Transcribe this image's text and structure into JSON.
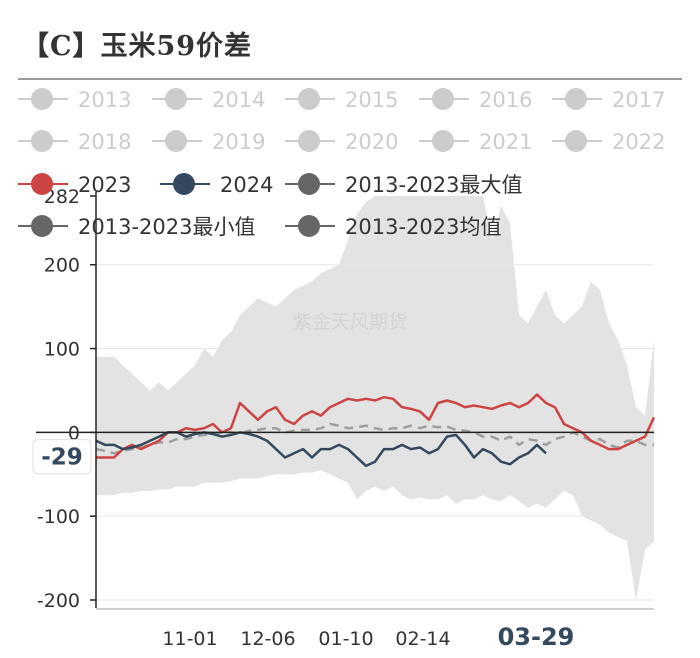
{
  "title": "【C】玉米59价差",
  "watermark": "紫金天风期货",
  "colors": {
    "c2023": "#cc4444",
    "c2024": "#34495e",
    "band": "#e3e3e3",
    "avg": "#9e9e9e",
    "legend_inactive": "#cccccc",
    "legend_gray": "#666666"
  },
  "chart_data": {
    "type": "line",
    "title": "【C】玉米59价差",
    "xlabel": "",
    "ylabel": "",
    "ylim": [
      -200,
      282
    ],
    "yticks": [
      "282",
      "200",
      "100",
      "0",
      "-100",
      "-200"
    ],
    "xticks": [
      "11-01",
      "12-06",
      "01-10",
      "02-14",
      "03-29"
    ],
    "highlight_x_label": "03-29",
    "cursor_y_label": "-29",
    "legend": {
      "placement": "top",
      "rows": [
        [
          {
            "label": "2013",
            "inactive": true
          },
          {
            "label": "2014",
            "inactive": true
          },
          {
            "label": "2015",
            "inactive": true
          },
          {
            "label": "2016",
            "inactive": true
          },
          {
            "label": "2017",
            "inactive": true
          }
        ],
        [
          {
            "label": "2018",
            "inactive": true
          },
          {
            "label": "2019",
            "inactive": true
          },
          {
            "label": "2020",
            "inactive": true
          },
          {
            "label": "2021",
            "inactive": true
          },
          {
            "label": "2022",
            "inactive": true
          }
        ],
        [
          {
            "label": "2023",
            "inactive": false,
            "color": "#cc4444"
          },
          {
            "label": "2024",
            "inactive": false,
            "color": "#34495e"
          },
          {
            "label": "2013-2023最大值",
            "inactive": false,
            "color": "#666666"
          }
        ],
        [
          {
            "label": "2013-2023最小值",
            "inactive": false,
            "color": "#666666"
          },
          {
            "label": "2013-2023均值",
            "inactive": false,
            "color": "#666666"
          }
        ]
      ]
    },
    "x_index": [
      0,
      9,
      18,
      27,
      36,
      45,
      54,
      63,
      72,
      81,
      90,
      99,
      108,
      117,
      126,
      135,
      144,
      153,
      162,
      171,
      180,
      189,
      198,
      207,
      216,
      225,
      234,
      243,
      252,
      261,
      270,
      279,
      288,
      297,
      306,
      315,
      324,
      333,
      342,
      351,
      360,
      369,
      378,
      387,
      396,
      405,
      414,
      423,
      432,
      441,
      450,
      459,
      468,
      477,
      486,
      495,
      504,
      513,
      522,
      531,
      540,
      549,
      558
    ],
    "x_tick_index": [
      94,
      172,
      250,
      327,
      440
    ],
    "series": [
      {
        "name": "2013-2023最大值",
        "values": [
          90,
          90,
          90,
          80,
          70,
          60,
          50,
          60,
          50,
          60,
          70,
          80,
          100,
          90,
          110,
          120,
          140,
          150,
          160,
          155,
          150,
          160,
          170,
          175,
          180,
          190,
          195,
          200,
          230,
          260,
          275,
          282,
          282,
          282,
          282,
          282,
          282,
          282,
          282,
          282,
          282,
          282,
          282,
          282,
          230,
          270,
          250,
          140,
          130,
          150,
          170,
          140,
          130,
          140,
          150,
          180,
          170,
          130,
          110,
          80,
          30,
          20,
          110
        ]
      },
      {
        "name": "2013-2023最小值",
        "values": [
          -75,
          -75,
          -75,
          -72,
          -72,
          -70,
          -70,
          -68,
          -68,
          -65,
          -65,
          -65,
          -60,
          -60,
          -60,
          -58,
          -55,
          -55,
          -55,
          -52,
          -50,
          -50,
          -50,
          -48,
          -48,
          -45,
          -50,
          -55,
          -60,
          -80,
          -70,
          -65,
          -70,
          -65,
          -75,
          -80,
          -78,
          -80,
          -80,
          -75,
          -85,
          -80,
          -80,
          -75,
          -80,
          -82,
          -75,
          -82,
          -90,
          -85,
          -90,
          -80,
          -70,
          -75,
          -100,
          -105,
          -110,
          -120,
          -125,
          -130,
          -200,
          -140,
          -130
        ]
      },
      {
        "name": "2013-2023均值",
        "values": [
          -20,
          -22,
          -25,
          -22,
          -20,
          -18,
          -15,
          -12,
          -12,
          -8,
          -8,
          -5,
          -3,
          -2,
          0,
          0,
          -2,
          2,
          3,
          5,
          5,
          0,
          2,
          3,
          3,
          5,
          10,
          8,
          5,
          6,
          8,
          5,
          3,
          5,
          5,
          8,
          5,
          8,
          6,
          7,
          3,
          2,
          0,
          -5,
          -5,
          -10,
          -5,
          -15,
          -8,
          -10,
          -15,
          -8,
          -5,
          0,
          -5,
          -10,
          -8,
          -15,
          -18,
          -10,
          -10,
          -15,
          -15
        ]
      },
      {
        "name": "2023",
        "values": [
          -30,
          -30,
          -30,
          -20,
          -15,
          -20,
          -15,
          -10,
          0,
          0,
          5,
          3,
          5,
          10,
          0,
          5,
          35,
          25,
          15,
          25,
          30,
          15,
          10,
          20,
          25,
          20,
          30,
          35,
          40,
          38,
          40,
          38,
          42,
          40,
          30,
          28,
          25,
          15,
          35,
          38,
          35,
          30,
          32,
          30,
          28,
          32,
          35,
          30,
          35,
          45,
          35,
          30,
          10,
          5,
          0,
          -10,
          -15,
          -20,
          -20,
          -15,
          -10,
          -5,
          18
        ]
      },
      {
        "name": "2024",
        "values": [
          -10,
          -15,
          -15,
          -20,
          -18,
          -15,
          -10,
          -5,
          0,
          0,
          -5,
          -2,
          0,
          -2,
          -5,
          -3,
          0,
          -2,
          -5,
          -10,
          -20,
          -30,
          -25,
          -20,
          -30,
          -20,
          -20,
          -15,
          -20,
          -30,
          -40,
          -35,
          -20,
          -20,
          -15,
          -20,
          -18,
          -25,
          -20,
          -5,
          -3,
          -15,
          -30,
          -20,
          -25,
          -35,
          -38,
          -30,
          -25,
          -15,
          -25,
          null,
          null,
          null,
          null,
          null,
          null,
          null,
          null,
          null,
          null,
          null,
          null
        ]
      }
    ]
  }
}
